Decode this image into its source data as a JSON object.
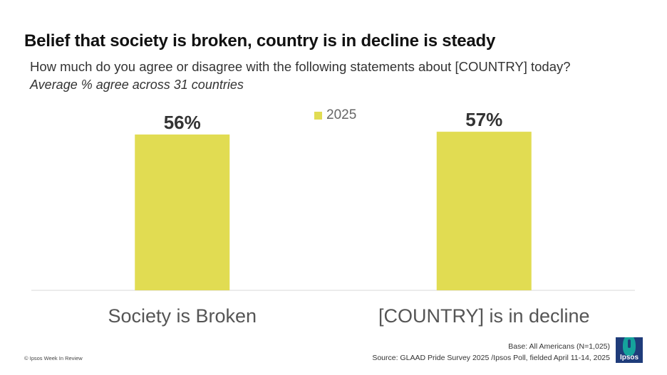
{
  "header": {
    "title": "Belief that society is broken, country is in decline is steady",
    "subtitle": "How much do you agree or disagree with the following statements about [COUNTRY] today?",
    "subtitle_italic": "Average % agree across 31 countries"
  },
  "colors": {
    "bar": "#e1dc52",
    "axis": "#d9d9d9",
    "label": "#555555",
    "value_label": "#333333"
  },
  "chart_data": {
    "type": "bar",
    "categories": [
      "Society is Broken",
      "[COUNTRY] is in decline"
    ],
    "series": [
      {
        "name": "2025",
        "values": [
          56,
          57
        ]
      }
    ],
    "value_labels": [
      "56%",
      "57%"
    ],
    "ylim": [
      0,
      100
    ],
    "legend_position": "top-center",
    "grid": false
  },
  "footer": {
    "copyright": "© Ipsos Week In Review",
    "base": "Base: All Americans (N=1,025)",
    "source": "Source: GLAAD Pride Survey 2025 /Ipsos Poll, fielded April 11-14, 2025"
  },
  "logo": {
    "text": "Ipsos"
  }
}
